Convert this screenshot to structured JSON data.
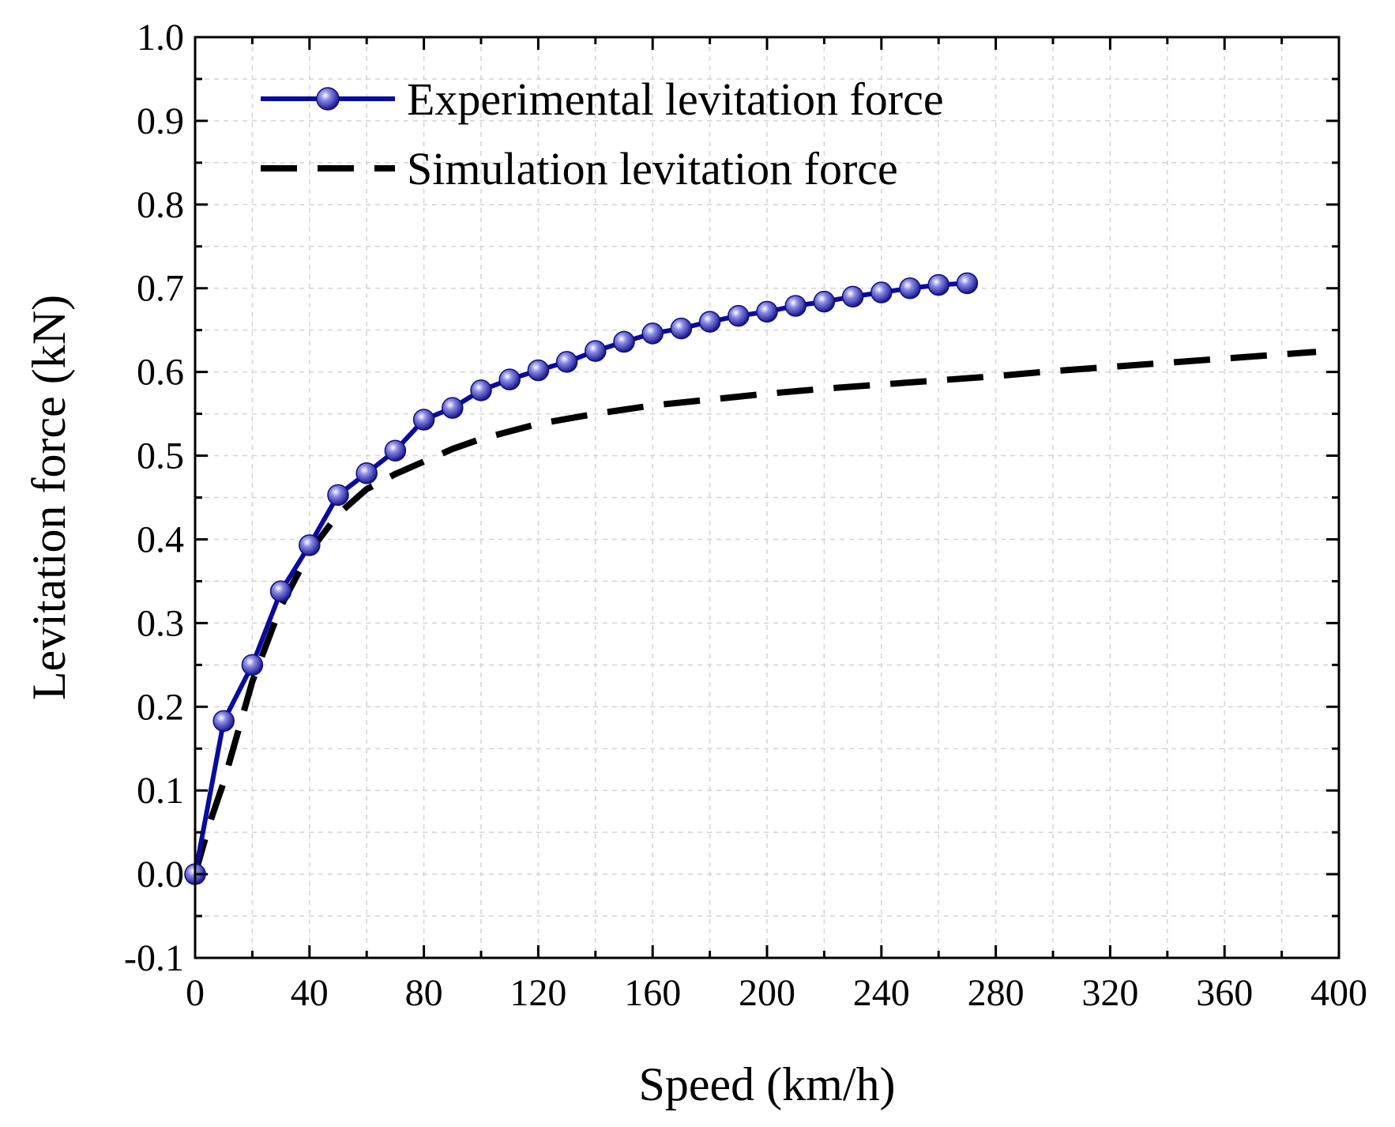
{
  "chart_data": {
    "type": "line",
    "title": "",
    "xlabel": "Speed (km/h)",
    "ylabel": "Levitation force (kN)",
    "xlim": [
      0,
      400
    ],
    "ylim": [
      -0.1,
      1.0
    ],
    "xticks": [
      0,
      40,
      80,
      120,
      160,
      200,
      240,
      280,
      320,
      360,
      400
    ],
    "xtick_labels": [
      "0",
      "40",
      "80",
      "120",
      "160",
      "200",
      "240",
      "280",
      "320",
      "360",
      "400"
    ],
    "yticks": [
      -0.1,
      0.0,
      0.1,
      0.2,
      0.3,
      0.4,
      0.5,
      0.6,
      0.7,
      0.8,
      0.9,
      1.0
    ],
    "ytick_labels": [
      "-0.1",
      "0.0",
      "0.1",
      "0.2",
      "0.3",
      "0.4",
      "0.5",
      "0.6",
      "0.7",
      "0.8",
      "0.9",
      "1.0"
    ],
    "grid": true,
    "legend_position": "top-left",
    "series": [
      {
        "name": "Experimental levitation force",
        "style": "solid-with-markers",
        "color": "#0a0aa0",
        "marker_color": "#2b2bb5",
        "x": [
          0,
          10,
          20,
          30,
          40,
          50,
          60,
          70,
          80,
          90,
          100,
          110,
          120,
          130,
          140,
          150,
          160,
          170,
          180,
          190,
          200,
          210,
          220,
          230,
          240,
          250,
          260,
          270
        ],
        "y": [
          0.0,
          0.183,
          0.25,
          0.338,
          0.393,
          0.453,
          0.479,
          0.506,
          0.543,
          0.557,
          0.578,
          0.591,
          0.602,
          0.612,
          0.625,
          0.636,
          0.646,
          0.652,
          0.66,
          0.667,
          0.672,
          0.679,
          0.684,
          0.69,
          0.695,
          0.7,
          0.704,
          0.706
        ]
      },
      {
        "name": "Simulation levitation force",
        "style": "dashed",
        "color": "#000000",
        "x": [
          0,
          5,
          10,
          15,
          20,
          30,
          40,
          50,
          60,
          70,
          80,
          90,
          100,
          120,
          140,
          160,
          180,
          200,
          220,
          240,
          260,
          280,
          300,
          320,
          340,
          360,
          380,
          392
        ],
        "y": [
          0.0,
          0.06,
          0.11,
          0.17,
          0.23,
          0.32,
          0.385,
          0.43,
          0.46,
          0.478,
          0.493,
          0.508,
          0.52,
          0.538,
          0.55,
          0.56,
          0.567,
          0.574,
          0.58,
          0.585,
          0.59,
          0.595,
          0.601,
          0.606,
          0.611,
          0.616,
          0.621,
          0.624
        ]
      }
    ]
  }
}
